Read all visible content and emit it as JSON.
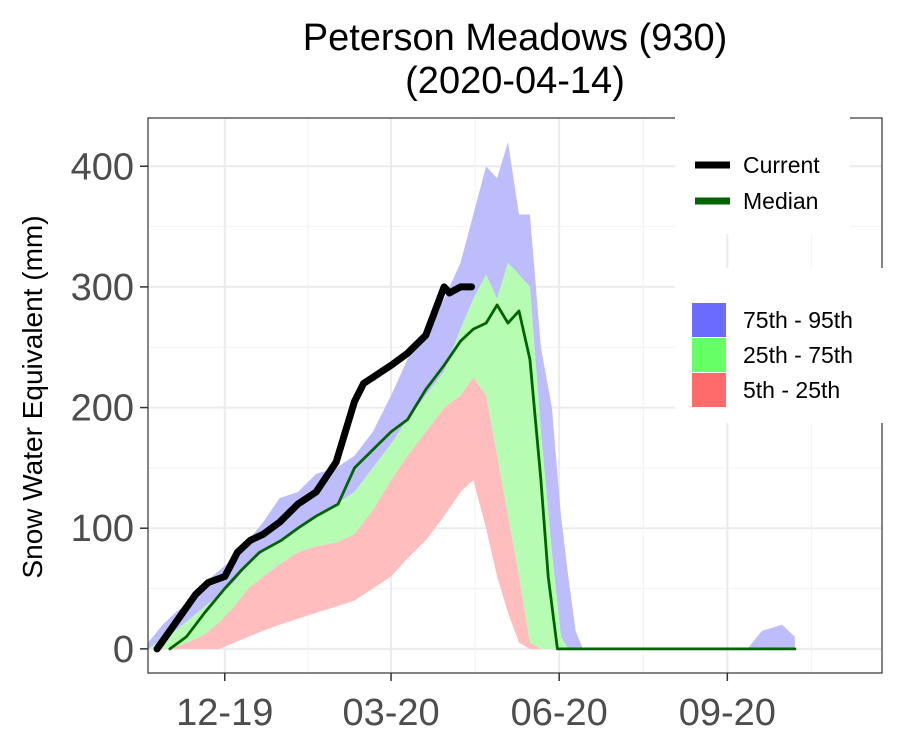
{
  "chart_data": {
    "type": "area",
    "title": "Peterson Meadows (930)",
    "subtitle": "(2020-04-14)",
    "xlabel": "",
    "ylabel": "Snow Water Equivalent (mm)",
    "x_range": [
      "2019-10-20",
      "2020-10-31"
    ],
    "ylim": [
      -20,
      440
    ],
    "y_ticks": [
      0,
      100,
      200,
      300,
      400
    ],
    "x_ticks": [
      {
        "date": "2019-12-01",
        "label": "12-19"
      },
      {
        "date": "2020-03-01",
        "label": "03-20"
      },
      {
        "date": "2020-06-01",
        "label": "06-20"
      },
      {
        "date": "2020-09-01",
        "label": "09-20"
      }
    ],
    "grid": true,
    "legend": [
      {
        "name": "Current",
        "kind": "line",
        "color": "#000000"
      },
      {
        "name": "Median",
        "kind": "line",
        "color": "#006400"
      }
    ],
    "band_legend": [
      {
        "name": "75th - 95th",
        "color": "#6b6bff"
      },
      {
        "name": "25th - 75th",
        "color": "#66ff66"
      },
      {
        "name": "5th - 25th",
        "color": "#ff6b6b"
      }
    ],
    "bands": [
      {
        "name": "75th - 95th",
        "color": "#bdbdfc",
        "lower_series": "p75",
        "upper_series": "p95"
      },
      {
        "name": "25th - 75th",
        "color": "#b7fcb3",
        "lower_series": "p25",
        "upper_series": "p75"
      },
      {
        "name": "5th - 25th",
        "color": "#ffbdbd",
        "lower_series": "p5",
        "upper_series": "p25"
      }
    ],
    "percentiles": {
      "dates": [
        "2019-10-20",
        "2019-10-28",
        "2019-11-04",
        "2019-11-12",
        "2019-11-20",
        "2019-11-28",
        "2019-12-06",
        "2019-12-14",
        "2019-12-22",
        "2019-12-31",
        "2020-01-10",
        "2020-01-20",
        "2020-01-31",
        "2020-02-10",
        "2020-02-20",
        "2020-03-01",
        "2020-03-10",
        "2020-03-20",
        "2020-03-30",
        "2020-04-08",
        "2020-04-15",
        "2020-04-22",
        "2020-04-28",
        "2020-05-04",
        "2020-05-10",
        "2020-05-16",
        "2020-05-22",
        "2020-05-28",
        "2020-06-02",
        "2020-06-06",
        "2020-06-10",
        "2020-06-14",
        "2020-06-20",
        "2020-09-12",
        "2020-09-20",
        "2020-10-01",
        "2020-10-08"
      ],
      "p95": [
        5,
        20,
        30,
        40,
        55,
        65,
        75,
        90,
        105,
        125,
        130,
        145,
        150,
        160,
        180,
        210,
        240,
        265,
        290,
        320,
        360,
        400,
        390,
        420,
        360,
        360,
        250,
        200,
        110,
        60,
        15,
        0,
        0,
        0,
        15,
        20,
        10
      ],
      "p75": [
        0,
        8,
        15,
        25,
        35,
        45,
        55,
        70,
        80,
        90,
        100,
        110,
        120,
        130,
        150,
        170,
        190,
        210,
        230,
        265,
        290,
        310,
        290,
        320,
        310,
        300,
        180,
        80,
        10,
        0,
        0,
        0,
        0,
        0,
        0,
        0,
        0
      ],
      "p25": [
        0,
        0,
        2,
        6,
        12,
        22,
        35,
        50,
        60,
        70,
        80,
        85,
        88,
        95,
        115,
        140,
        160,
        180,
        200,
        210,
        225,
        210,
        160,
        110,
        60,
        5,
        0,
        0,
        0,
        0,
        0,
        0,
        0,
        0,
        0,
        0,
        0
      ],
      "p5": [
        0,
        0,
        0,
        0,
        0,
        0,
        5,
        10,
        15,
        20,
        25,
        30,
        35,
        40,
        50,
        60,
        75,
        90,
        110,
        130,
        140,
        100,
        60,
        30,
        5,
        0,
        0,
        0,
        0,
        0,
        0,
        0,
        0,
        0,
        0,
        0,
        0
      ]
    },
    "series": [
      {
        "name": "Median",
        "color": "#006400",
        "x": [
          "2019-11-01",
          "2019-11-10",
          "2019-11-20",
          "2019-12-01",
          "2019-12-10",
          "2019-12-20",
          "2020-01-01",
          "2020-01-10",
          "2020-01-20",
          "2020-02-01",
          "2020-02-10",
          "2020-02-20",
          "2020-03-01",
          "2020-03-10",
          "2020-03-20",
          "2020-03-30",
          "2020-04-08",
          "2020-04-15",
          "2020-04-22",
          "2020-04-28",
          "2020-05-04",
          "2020-05-10",
          "2020-05-16",
          "2020-05-22",
          "2020-05-26",
          "2020-05-31",
          "2020-06-02",
          "2020-06-20",
          "2020-09-01",
          "2020-10-08"
        ],
        "y": [
          0,
          10,
          30,
          50,
          65,
          80,
          90,
          100,
          110,
          120,
          150,
          165,
          180,
          190,
          215,
          235,
          255,
          265,
          270,
          285,
          270,
          280,
          240,
          140,
          60,
          0,
          0,
          0,
          0,
          0
        ]
      },
      {
        "name": "Current",
        "color": "#000000",
        "x": [
          "2019-10-25",
          "2019-11-01",
          "2019-11-08",
          "2019-11-15",
          "2019-11-22",
          "2019-12-01",
          "2019-12-08",
          "2019-12-15",
          "2019-12-22",
          "2019-12-31",
          "2020-01-10",
          "2020-01-20",
          "2020-01-31",
          "2020-02-10",
          "2020-02-15",
          "2020-02-20",
          "2020-03-01",
          "2020-03-10",
          "2020-03-20",
          "2020-03-30",
          "2020-04-02",
          "2020-04-08",
          "2020-04-14"
        ],
        "y": [
          0,
          15,
          30,
          45,
          55,
          60,
          80,
          90,
          95,
          105,
          120,
          130,
          155,
          205,
          220,
          225,
          235,
          245,
          260,
          300,
          295,
          300,
          300
        ]
      }
    ]
  }
}
